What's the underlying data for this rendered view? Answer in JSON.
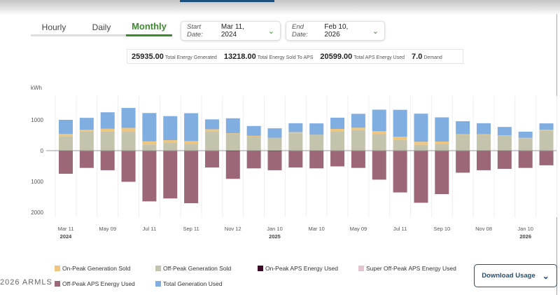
{
  "tabs": [
    {
      "label": "Hourly"
    },
    {
      "label": "Daily"
    },
    {
      "label": "Monthly",
      "active": true
    }
  ],
  "start_date": {
    "label": "Start Date:",
    "value": "Mar 11, 2024"
  },
  "end_date": {
    "label": "End Date:",
    "value": "Feb 10, 2026"
  },
  "summary": [
    {
      "value": "25935.00",
      "label": "Total Energy Generated"
    },
    {
      "value": "13218.00",
      "label": "Total Energy Sold To APS"
    },
    {
      "value": "20599.00",
      "label": "Total APS Energy Used"
    },
    {
      "value": "7.0",
      "label": "Demand"
    }
  ],
  "download_label": "Download Usage",
  "watermark": "2026 ARMLS",
  "chart_data": {
    "type": "bar",
    "stacked": true,
    "ylabel": "kWh",
    "ylim": [
      -2200,
      1600
    ],
    "yticks": [
      {
        "v": 1000,
        "label": "1000"
      },
      {
        "v": 0,
        "label": "0"
      },
      {
        "v": -1000,
        "label": "1000"
      },
      {
        "v": -2000,
        "label": "2000"
      }
    ],
    "categories": [
      "Mar 2024",
      "Apr 2024",
      "May 2024",
      "Jun 2024",
      "Jul 2024",
      "Aug 2024",
      "Sep 2024",
      "Oct 2024",
      "Nov 2024",
      "Dec 2024",
      "Jan 2025",
      "Feb 2025",
      "Mar 2025",
      "Apr 2025",
      "May 2025",
      "Jun 2025",
      "Jul 2025",
      "Aug 2025",
      "Sep 2025",
      "Oct 2025",
      "Nov 2025",
      "Dec 2025",
      "Jan 2026",
      "Feb 2026"
    ],
    "xticks": [
      {
        "i": 0,
        "label": "Mar 11",
        "year": "2024"
      },
      {
        "i": 2,
        "label": "May 09"
      },
      {
        "i": 4,
        "label": "Jul 11"
      },
      {
        "i": 6,
        "label": "Sep 11"
      },
      {
        "i": 8,
        "label": "Nov 12"
      },
      {
        "i": 10,
        "label": "Jan 10",
        "year": "2025"
      },
      {
        "i": 12,
        "label": "Mar 10"
      },
      {
        "i": 14,
        "label": "May 09"
      },
      {
        "i": 16,
        "label": "Jul 11"
      },
      {
        "i": 18,
        "label": "Sep 10"
      },
      {
        "i": 20,
        "label": "Nov 08"
      },
      {
        "i": 22,
        "label": "Jan 10",
        "year": "2026"
      }
    ],
    "grid": "vertical",
    "legend_position": "bottom",
    "series": [
      {
        "name": "Off-Peak Generation Sold",
        "color": "#c4c4ad",
        "values": [
          470,
          615,
          620,
          630,
          200,
          250,
          225,
          630,
          560,
          470,
          420,
          565,
          520,
          630,
          665,
          535,
          350,
          190,
          215,
          525,
          530,
          495,
          410,
          650
        ]
      },
      {
        "name": "On-Peak Generation Sold",
        "color": "#efc67f",
        "values": [
          70,
          60,
          90,
          110,
          100,
          90,
          85,
          65,
          5,
          10,
          0,
          35,
          0,
          75,
          80,
          95,
          100,
          100,
          80,
          10,
          5,
          5,
          5,
          25
        ]
      },
      {
        "name": "Total Generation Used",
        "color": "#80aee0",
        "values": [
          460,
          390,
          535,
          645,
          920,
          780,
          905,
          320,
          485,
          320,
          305,
          290,
          365,
          365,
          450,
          700,
          875,
          910,
          785,
          420,
          355,
          270,
          200,
          210
        ]
      },
      {
        "name": "On-Peak APS Energy Used",
        "color": "#3c0a26",
        "values": [
          -15,
          -10,
          -10,
          -10,
          -10,
          -10,
          -10,
          -10,
          -20,
          -15,
          -20,
          -10,
          -15,
          -10,
          -10,
          -10,
          -10,
          -10,
          -10,
          -10,
          -15,
          -15,
          -10,
          -10
        ]
      },
      {
        "name": "Off-Peak APS Energy Used",
        "color": "#9c6878",
        "values": [
          -735,
          -550,
          -625,
          -1000,
          -1635,
          -1540,
          -1695,
          -535,
          -895,
          -560,
          -615,
          -535,
          -560,
          -500,
          -550,
          -930,
          -1345,
          -1680,
          -1400,
          -705,
          -620,
          -575,
          -550,
          -465
        ]
      },
      {
        "name": "Super Off-Peak APS Energy Used",
        "color": "#e4c3d0",
        "values": [
          0,
          0,
          0,
          0,
          0,
          0,
          0,
          0,
          0,
          0,
          0,
          0,
          0,
          0,
          0,
          0,
          0,
          0,
          0,
          0,
          0,
          0,
          0,
          0
        ]
      }
    ],
    "legend_order": [
      1,
      0,
      3,
      5,
      4,
      2
    ]
  }
}
